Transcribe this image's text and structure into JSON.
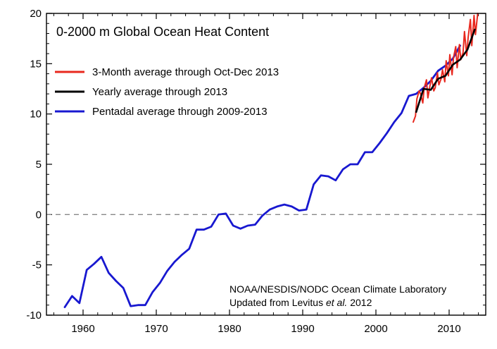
{
  "chart_data": {
    "type": "line",
    "title": "0-2000 m Global Ocean Heat Content",
    "xlabel": "",
    "ylabel": "",
    "xlim": [
      1955,
      2015
    ],
    "ylim": [
      -10,
      20
    ],
    "x_ticks": [
      1960,
      1970,
      1980,
      1990,
      2000,
      2010
    ],
    "y_ticks": [
      -10,
      -5,
      0,
      5,
      10,
      15,
      20
    ],
    "zero_line": "dashed",
    "legend_position": "top-left",
    "series": [
      {
        "name": "3-Month average through Oct-Dec 2013",
        "color": "#e8281e",
        "x": [
          2005.1,
          2005.4,
          2005.6,
          2005.9,
          2006.1,
          2006.4,
          2006.6,
          2006.9,
          2007.1,
          2007.4,
          2007.6,
          2007.9,
          2008.1,
          2008.4,
          2008.6,
          2008.9,
          2009.1,
          2009.4,
          2009.6,
          2009.9,
          2010.1,
          2010.4,
          2010.6,
          2010.9,
          2011.1,
          2011.4,
          2011.6,
          2011.9,
          2012.1,
          2012.4,
          2012.6,
          2012.9,
          2013.1,
          2013.4,
          2013.6,
          2013.9
        ],
        "values": [
          9.2,
          9.8,
          11.5,
          12.3,
          12.0,
          11.1,
          12.6,
          13.4,
          11.6,
          12.9,
          13.6,
          12.3,
          12.6,
          14.1,
          12.9,
          13.5,
          14.4,
          13.2,
          15.3,
          13.8,
          15.9,
          13.9,
          15.6,
          16.7,
          14.6,
          16.9,
          15.4,
          16.1,
          18.2,
          15.8,
          17.6,
          19.4,
          16.8,
          19.8,
          17.9,
          20.0
        ]
      },
      {
        "name": "Yearly average through 2013",
        "color": "#000000",
        "x": [
          2005.5,
          2006.5,
          2007.5,
          2008.5,
          2009.5,
          2010.5,
          2011.5,
          2012.5,
          2013.5
        ],
        "values": [
          10.2,
          12.5,
          12.4,
          13.5,
          13.8,
          14.9,
          15.4,
          16.4,
          18.4
        ]
      },
      {
        "name": "Pentadal average through 2009-2013",
        "color": "#1818d0",
        "x": [
          1957.5,
          1958.5,
          1959.5,
          1960.5,
          1961.5,
          1962.5,
          1963.5,
          1964.5,
          1965.5,
          1966.5,
          1967.5,
          1968.5,
          1969.5,
          1970.5,
          1971.5,
          1972.5,
          1973.5,
          1974.5,
          1975.5,
          1976.5,
          1977.5,
          1978.5,
          1979.5,
          1980.5,
          1981.5,
          1982.5,
          1983.5,
          1984.5,
          1985.5,
          1986.5,
          1987.5,
          1988.5,
          1989.5,
          1990.5,
          1991.5,
          1992.5,
          1993.5,
          1994.5,
          1995.5,
          1996.5,
          1997.5,
          1998.5,
          1999.5,
          2000.5,
          2001.5,
          2002.5,
          2003.5,
          2004.5,
          2005.5,
          2006.5,
          2007.5,
          2008.5,
          2009.5,
          2010.5,
          2011.5
        ],
        "values": [
          -9.2,
          -8.1,
          -8.8,
          -5.5,
          -4.9,
          -4.2,
          -5.8,
          -6.6,
          -7.3,
          -9.1,
          -9.0,
          -9.0,
          -7.7,
          -6.8,
          -5.6,
          -4.7,
          -4.0,
          -3.4,
          -1.5,
          -1.5,
          -1.2,
          0.0,
          0.1,
          -1.1,
          -1.4,
          -1.1,
          -1.0,
          -0.1,
          0.5,
          0.8,
          1.0,
          0.8,
          0.4,
          0.5,
          3.0,
          3.9,
          3.8,
          3.4,
          4.5,
          5.0,
          5.0,
          6.2,
          6.2,
          7.1,
          8.1,
          9.2,
          10.1,
          11.8,
          12.0,
          12.6,
          13.3,
          14.3,
          14.8,
          15.5,
          16.8
        ]
      }
    ],
    "annotations": [
      "NOAA/NESDIS/NODC Ocean Climate Laboratory",
      "Updated from Levitus",
      "et al.",
      "2012"
    ]
  }
}
